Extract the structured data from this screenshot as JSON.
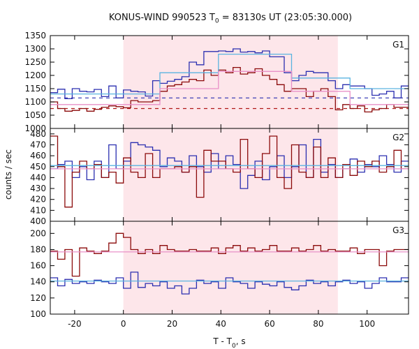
{
  "title": {
    "prefix": "KONUS-WIND 990523 T",
    "sub": "0",
    "suffix": " = 83130s UT (23:05:30.000)"
  },
  "chart_data": {
    "type": "step-line",
    "title": "KONUS-WIND 990523 T0 = 83130s UT (23:05:30.000)",
    "xlabel": "T - T0, s",
    "ylabel": "counts / sec",
    "xlim": [
      -30,
      117
    ],
    "x_ticks": [
      -20,
      0,
      20,
      40,
      60,
      80,
      100
    ],
    "shaded_interval": [
      0,
      88
    ],
    "shade_color": "#fde6ea",
    "bin_edges": [
      -30,
      -27,
      -24,
      -21,
      -18,
      -15,
      -12,
      -9,
      -6,
      -3,
      0,
      3,
      6,
      9,
      12,
      15,
      18,
      21,
      24,
      27,
      30,
      33,
      36,
      39,
      42,
      45,
      48,
      51,
      54,
      57,
      60,
      63,
      66,
      69,
      72,
      75,
      78,
      81,
      84,
      87,
      90,
      93,
      96,
      99,
      102,
      105,
      108,
      111,
      114,
      117
    ],
    "panels": [
      {
        "label": "G1",
        "ylim": [
          1000,
          1350
        ],
        "y_ticks": [
          1000,
          1050,
          1100,
          1150,
          1200,
          1250,
          1300,
          1350
        ],
        "series": [
          {
            "color": "#2b2fb0",
            "style": "solid",
            "values": [
              1135,
              1148,
              1112,
              1150,
              1140,
              1138,
              1147,
              1120,
              1160,
              1115,
              1145,
              1140,
              1138,
              1122,
              1180,
              1170,
              1178,
              1185,
              1195,
              1250,
              1240,
              1290,
              1290,
              1292,
              1290,
              1300,
              1288,
              1290,
              1285,
              1292,
              1270,
              1270,
              1210,
              1180,
              1200,
              1215,
              1210,
              1210,
              1180,
              1150,
              1165,
              1160,
              1160,
              1150,
              1125,
              1130,
              1140,
              1115,
              1160
            ]
          },
          {
            "color": "#8b0a0a",
            "style": "solid",
            "values": [
              1100,
              1075,
              1065,
              1068,
              1075,
              1065,
              1072,
              1080,
              1085,
              1082,
              1078,
              1105,
              1100,
              1100,
              1105,
              1140,
              1160,
              1165,
              1175,
              1185,
              1180,
              1220,
              1200,
              1220,
              1210,
              1230,
              1205,
              1210,
              1225,
              1200,
              1185,
              1165,
              1140,
              1150,
              1150,
              1120,
              1140,
              1150,
              1120,
              1070,
              1090,
              1075,
              1085,
              1062,
              1070,
              1075,
              1090,
              1080,
              1080
            ]
          },
          {
            "color": "#5ab4e0",
            "style": "solid",
            "values": [
              1130,
              1130,
              1130,
              1130,
              1130,
              1130,
              1130,
              1130,
              1130,
              1130,
              1130,
              1130,
              1130,
              1130,
              1130,
              1210,
              1210,
              1210,
              1210,
              1210,
              1210,
              1210,
              1210,
              1280,
              1280,
              1280,
              1280,
              1280,
              1280,
              1280,
              1280,
              1280,
              1280,
              1190,
              1190,
              1190,
              1190,
              1190,
              1190,
              1190,
              1190,
              1150,
              1150,
              1150,
              1150,
              1150,
              1150,
              1150,
              1150
            ]
          },
          {
            "color": "#e890c8",
            "style": "solid",
            "values": [
              1090,
              1090,
              1090,
              1090,
              1090,
              1090,
              1090,
              1090,
              1090,
              1090,
              1090,
              1090,
              1090,
              1090,
              1090,
              1150,
              1150,
              1150,
              1150,
              1150,
              1150,
              1150,
              1150,
              1215,
              1215,
              1215,
              1215,
              1215,
              1215,
              1215,
              1215,
              1215,
              1215,
              1140,
              1140,
              1140,
              1140,
              1140,
              1140,
              1140,
              1140,
              1090,
              1090,
              1090,
              1090,
              1090,
              1090,
              1090,
              1090
            ]
          }
        ],
        "background": [
          {
            "color": "#2b2fb0",
            "style": "dashed",
            "value": 1115
          },
          {
            "color": "#b01818",
            "style": "dashed",
            "value": 1075
          }
        ]
      },
      {
        "label": "G2",
        "ylim": [
          400,
          485
        ],
        "y_ticks": [
          400,
          410,
          420,
          430,
          440,
          450,
          460,
          470,
          480
        ],
        "series": [
          {
            "color": "#2b2fb0",
            "style": "solid",
            "values": [
              448,
              452,
              455,
              440,
              450,
              438,
              455,
              440,
              470,
              448,
              455,
              472,
              470,
              468,
              465,
              450,
              458,
              455,
              445,
              460,
              450,
              445,
              462,
              448,
              460,
              452,
              430,
              442,
              455,
              438,
              450,
              460,
              440,
              450,
              470,
              440,
              475,
              445,
              452,
              440,
              448,
              457,
              445,
              452,
              450,
              460,
              452,
              445,
              455
            ]
          },
          {
            "color": "#8b0a0a",
            "style": "solid",
            "values": [
              478,
              450,
              413,
              445,
              455,
              448,
              452,
              440,
              445,
              435,
              458,
              445,
              440,
              462,
              440,
              448,
              448,
              450,
              445,
              450,
              422,
              465,
              455,
              455,
              448,
              445,
              475,
              448,
              440,
              462,
              478,
              440,
              430,
              470,
              445,
              440,
              468,
              440,
              458,
              440,
              452,
              442,
              455,
              450,
              455,
              445,
              450,
              465,
              448
            ]
          },
          {
            "color": "#5ab4e0",
            "style": "solid",
            "values": [
              451,
              451,
              451,
              451,
              451,
              451,
              451,
              451,
              451,
              451,
              451,
              451,
              451,
              451,
              451,
              451,
              451,
              451,
              451,
              451,
              451,
              451,
              451,
              451,
              451,
              451,
              451,
              451,
              451,
              451,
              451,
              451,
              451,
              451,
              451,
              451,
              451,
              451,
              451,
              451,
              451,
              451,
              451,
              451,
              451,
              451,
              451,
              451,
              451
            ]
          },
          {
            "color": "#e890c8",
            "style": "solid",
            "values": [
              448,
              448,
              448,
              448,
              448,
              448,
              448,
              448,
              448,
              448,
              448,
              448,
              448,
              448,
              448,
              448,
              448,
              448,
              448,
              448,
              448,
              448,
              448,
              448,
              448,
              448,
              448,
              448,
              448,
              448,
              448,
              448,
              448,
              448,
              448,
              448,
              448,
              448,
              448,
              448,
              448,
              448,
              448,
              448,
              448,
              448,
              448,
              448,
              448
            ]
          }
        ],
        "background": []
      },
      {
        "label": "G3",
        "ylim": [
          100,
          215
        ],
        "y_ticks": [
          100,
          120,
          140,
          160,
          180,
          200
        ],
        "series": [
          {
            "color": "#2b2fb0",
            "style": "solid",
            "values": [
              145,
              135,
              143,
              138,
              140,
              138,
              142,
              140,
              138,
              145,
              132,
              152,
              133,
              138,
              135,
              140,
              132,
              135,
              125,
              132,
              142,
              138,
              140,
              132,
              145,
              140,
              138,
              132,
              140,
              137,
              135,
              140,
              133,
              130,
              135,
              142,
              138,
              140,
              135,
              140,
              142,
              138,
              140,
              132,
              138,
              145,
              140,
              140,
              145
            ]
          },
          {
            "color": "#8b0a0a",
            "style": "solid",
            "values": [
              178,
              168,
              180,
              147,
              182,
              178,
              175,
              178,
              188,
              200,
              195,
              180,
              175,
              180,
              175,
              185,
              180,
              178,
              178,
              180,
              178,
              178,
              182,
              175,
              182,
              185,
              178,
              182,
              178,
              180,
              185,
              178,
              178,
              182,
              178,
              180,
              185,
              178,
              180,
              178,
              178,
              182,
              175,
              180,
              180,
              160,
              178,
              180,
              180
            ]
          },
          {
            "color": "#5ab4e0",
            "style": "solid",
            "values": [
              141,
              141,
              141,
              141,
              141,
              141,
              141,
              141,
              141,
              141,
              141,
              141,
              141,
              141,
              141,
              141,
              141,
              141,
              141,
              141,
              141,
              141,
              141,
              141,
              141,
              141,
              141,
              141,
              141,
              141,
              141,
              141,
              141,
              141,
              141,
              141,
              141,
              141,
              141,
              141,
              141,
              141,
              141,
              141,
              141,
              141,
              141,
              141,
              141
            ]
          },
          {
            "color": "#e890c8",
            "style": "solid",
            "values": [
              177,
              177,
              177,
              177,
              177,
              177,
              177,
              177,
              177,
              177,
              177,
              177,
              177,
              177,
              177,
              177,
              177,
              177,
              177,
              177,
              177,
              177,
              177,
              177,
              177,
              177,
              177,
              177,
              177,
              177,
              177,
              177,
              177,
              177,
              177,
              177,
              177,
              177,
              177,
              177,
              177,
              177,
              177,
              177,
              177,
              177,
              177,
              177,
              177
            ]
          }
        ],
        "background": []
      }
    ]
  }
}
